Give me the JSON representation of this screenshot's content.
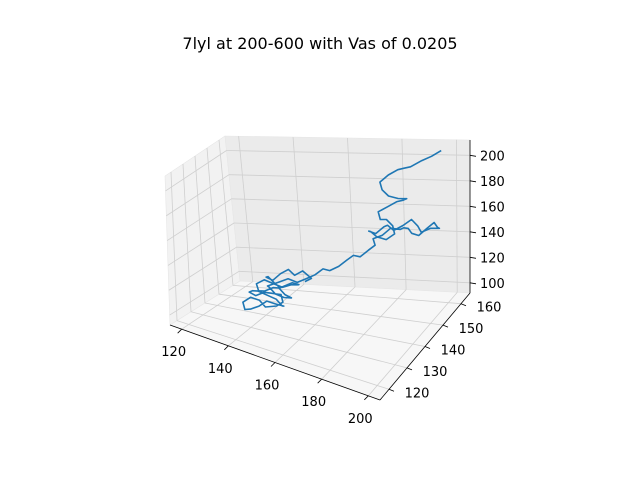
{
  "chart_data": {
    "type": "line",
    "projection": "3d",
    "title": "7lyl at 200-600 with Vas of 0.0205",
    "xlabel": "",
    "ylabel": "",
    "zlabel": "",
    "grid": true,
    "legend": "none",
    "x_ticks": [
      "120",
      "140",
      "160",
      "180",
      "200"
    ],
    "y_ticks": [
      "120",
      "130",
      "140",
      "150",
      "160"
    ],
    "z_ticks": [
      "100",
      "120",
      "140",
      "160",
      "180",
      "200"
    ],
    "xlim": [
      115,
      205
    ],
    "ylim": [
      115,
      165
    ],
    "zlim": [
      92,
      212
    ],
    "series": [
      {
        "color": "#1f77b4",
        "note_points": "approximate sampled path (x, y, z)",
        "points": [
          [
            150,
            150,
            112
          ],
          [
            152,
            151,
            114
          ],
          [
            148,
            152,
            118
          ],
          [
            146,
            150,
            116
          ],
          [
            143,
            151,
            119
          ],
          [
            141,
            149,
            117
          ],
          [
            139,
            147,
            113
          ],
          [
            137,
            146,
            116
          ],
          [
            139,
            144,
            119
          ],
          [
            142,
            143,
            116
          ],
          [
            145,
            142,
            114
          ],
          [
            147,
            141,
            117
          ],
          [
            150,
            142,
            120
          ],
          [
            152,
            143,
            118
          ],
          [
            150,
            145,
            115
          ],
          [
            147,
            146,
            113
          ],
          [
            144,
            145,
            111
          ],
          [
            141,
            144,
            114
          ],
          [
            138,
            143,
            117
          ],
          [
            136,
            141,
            115
          ],
          [
            138,
            139,
            112
          ],
          [
            141,
            138,
            114
          ],
          [
            144,
            139,
            117
          ],
          [
            147,
            138,
            119
          ],
          [
            150,
            137,
            116
          ],
          [
            152,
            138,
            113
          ],
          [
            150,
            140,
            110
          ],
          [
            147,
            141,
            108
          ],
          [
            144,
            140,
            111
          ],
          [
            141,
            138,
            113
          ],
          [
            138,
            137,
            110
          ],
          [
            136,
            136,
            113
          ],
          [
            138,
            135,
            116
          ],
          [
            141,
            134,
            118
          ],
          [
            144,
            135,
            115
          ],
          [
            147,
            136,
            112
          ],
          [
            150,
            135,
            109
          ],
          [
            152,
            133,
            112
          ],
          [
            150,
            131,
            115
          ],
          [
            147,
            130,
            117
          ],
          [
            145,
            128,
            114
          ],
          [
            142,
            127,
            111
          ],
          [
            139,
            128,
            108
          ],
          [
            137,
            130,
            111
          ],
          [
            139,
            132,
            114
          ],
          [
            142,
            133,
            112
          ],
          [
            145,
            132,
            109
          ],
          [
            148,
            131,
            112
          ],
          [
            151,
            130,
            115
          ],
          [
            153,
            131,
            118
          ],
          [
            151,
            133,
            121
          ],
          [
            148,
            134,
            119
          ],
          [
            145,
            135,
            122
          ],
          [
            143,
            137,
            120
          ],
          [
            146,
            139,
            122
          ],
          [
            149,
            141,
            124
          ],
          [
            152,
            142,
            121
          ],
          [
            155,
            143,
            124
          ],
          [
            158,
            144,
            127
          ],
          [
            160,
            146,
            130
          ],
          [
            162,
            147,
            128
          ],
          [
            165,
            148,
            131
          ],
          [
            167,
            150,
            134
          ],
          [
            169,
            151,
            137
          ],
          [
            171,
            152,
            135
          ],
          [
            173,
            154,
            138
          ],
          [
            175,
            155,
            141
          ],
          [
            173,
            157,
            143
          ],
          [
            176,
            158,
            145
          ],
          [
            178,
            160,
            148
          ],
          [
            181,
            161,
            146
          ],
          [
            183,
            160,
            149
          ],
          [
            186,
            158,
            152
          ],
          [
            188,
            157,
            150
          ],
          [
            190,
            158,
            147
          ],
          [
            192,
            160,
            150
          ],
          [
            194,
            161,
            153
          ],
          [
            196,
            160,
            151
          ],
          [
            198,
            158,
            154
          ],
          [
            196,
            156,
            157
          ],
          [
            193,
            155,
            155
          ],
          [
            191,
            156,
            158
          ],
          [
            188,
            157,
            161
          ],
          [
            186,
            155,
            159
          ],
          [
            183,
            154,
            156
          ],
          [
            180,
            155,
            158
          ],
          [
            178,
            156,
            155
          ],
          [
            176,
            154,
            152
          ],
          [
            174,
            153,
            155
          ],
          [
            176,
            151,
            158
          ],
          [
            179,
            150,
            156
          ],
          [
            182,
            151,
            153
          ],
          [
            184,
            153,
            155
          ],
          [
            182,
            155,
            158
          ],
          [
            179,
            156,
            161
          ],
          [
            176,
            157,
            159
          ],
          [
            174,
            159,
            162
          ],
          [
            177,
            160,
            165
          ],
          [
            180,
            161,
            168
          ],
          [
            183,
            160,
            171
          ],
          [
            185,
            159,
            174
          ],
          [
            183,
            157,
            177
          ],
          [
            180,
            156,
            180
          ],
          [
            177,
            157,
            183
          ],
          [
            175,
            159,
            186
          ],
          [
            177,
            161,
            189
          ],
          [
            180,
            162,
            192
          ],
          [
            183,
            161,
            195
          ],
          [
            186,
            160,
            198
          ],
          [
            189,
            162,
            200
          ],
          [
            192,
            163,
            202
          ],
          [
            195,
            164,
            205
          ]
        ]
      }
    ]
  }
}
